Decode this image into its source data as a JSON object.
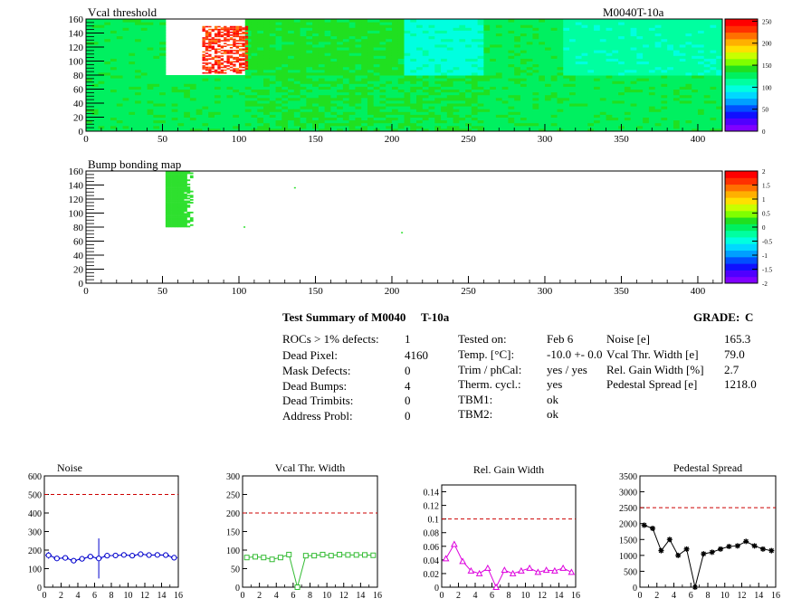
{
  "map_panels": {
    "vcal": {
      "title": "Vcal threshold",
      "label": "M0040T-10a",
      "x_ticks": [
        "0",
        "50",
        "100",
        "150",
        "200",
        "250",
        "300",
        "350",
        "400"
      ],
      "y_ticks": [
        "0",
        "20",
        "40",
        "60",
        "80",
        "100",
        "120",
        "140",
        "160"
      ],
      "z_ticks": [
        "0",
        "50",
        "100",
        "150",
        "200",
        "250"
      ],
      "xlim": [
        0,
        416
      ],
      "ylim": [
        0,
        160
      ],
      "zlim": [
        0,
        255
      ]
    },
    "bump": {
      "title": "Bump bonding map",
      "x_ticks": [
        "0",
        "50",
        "100",
        "150",
        "200",
        "250",
        "300",
        "350",
        "400"
      ],
      "y_ticks": [
        "0",
        "20",
        "40",
        "60",
        "80",
        "100",
        "120",
        "140",
        "160"
      ],
      "z_ticks": [
        "-2",
        "-1.5",
        "-1",
        "-0.5",
        "0",
        "0.5",
        "1",
        "1.5",
        "2"
      ],
      "xlim": [
        0,
        416
      ],
      "ylim": [
        0,
        160
      ],
      "zlim": [
        -2,
        2
      ]
    }
  },
  "summary": {
    "title": "Test Summary of M0040",
    "title_id": "T-10a",
    "grade_label": "GRADE:",
    "grade_value": "C",
    "col1": [
      {
        "label": "ROCs > 1% defects:",
        "value": "1"
      },
      {
        "label": "Dead Pixel:",
        "value": "4160"
      },
      {
        "label": "Mask Defects:",
        "value": "0"
      },
      {
        "label": "Dead Bumps:",
        "value": "4"
      },
      {
        "label": "Dead Trimbits:",
        "value": "0"
      },
      {
        "label": "Address Probl:",
        "value": "0"
      }
    ],
    "col2": [
      {
        "label": "Tested on:",
        "value": "Feb 6"
      },
      {
        "label": "Temp. [°C]:",
        "value": "-10.0 +- 0.0"
      },
      {
        "label": "Trim / phCal:",
        "value": "yes / yes"
      },
      {
        "label": "Therm. cycl.:",
        "value": "yes"
      },
      {
        "label": "TBM1:",
        "value": "ok"
      },
      {
        "label": "TBM2:",
        "value": "ok"
      }
    ],
    "col3": [
      {
        "label": "Noise [e]",
        "value": "165.3"
      },
      {
        "label": "Vcal Thr. Width [e]",
        "value": "79.0"
      },
      {
        "label": "Rel. Gain Width [%]",
        "value": "2.7"
      },
      {
        "label": "Pedestal Spread [e]",
        "value": "1218.0"
      }
    ]
  },
  "chart_data": [
    {
      "type": "heatmap",
      "title": "Vcal threshold",
      "xlim": [
        0,
        416
      ],
      "ylim": [
        0,
        160
      ],
      "zlim": [
        0,
        255
      ],
      "rocs_bottom_mean": [
        130,
        130,
        135,
        135,
        135,
        130,
        130,
        130
      ],
      "rocs_top_mean": [
        130,
        null,
        140,
        140,
        100,
        130,
        110,
        110
      ],
      "hot_region": {
        "x": [
          76,
          105
        ],
        "y": [
          82,
          150
        ],
        "value": 250
      },
      "empty_roc": {
        "x": [
          52,
          104
        ],
        "y": [
          80,
          160
        ]
      }
    },
    {
      "type": "heatmap",
      "title": "Bump bonding map",
      "xlim": [
        0,
        416
      ],
      "ylim": [
        0,
        160
      ],
      "zlim": [
        -2,
        2
      ],
      "filled_region": {
        "x": [
          52,
          70
        ],
        "y": [
          80,
          160
        ],
        "value": 0
      }
    },
    {
      "type": "line",
      "title": "Noise",
      "x": [
        0,
        1,
        2,
        3,
        4,
        5,
        6,
        7,
        8,
        9,
        10,
        11,
        12,
        13,
        14,
        15
      ],
      "values": [
        172,
        155,
        158,
        143,
        153,
        165,
        155,
        170,
        171,
        174,
        170,
        178,
        173,
        174,
        173,
        159
      ],
      "errors": [
        18,
        14,
        14,
        14,
        14,
        14,
        108,
        14,
        14,
        14,
        14,
        14,
        14,
        14,
        14,
        14
      ],
      "xlim": [
        0,
        16
      ],
      "ylim": [
        0,
        600
      ],
      "threshold": 500,
      "x_ticks": [
        "0",
        "2",
        "4",
        "6",
        "8",
        "10",
        "12",
        "14",
        "16"
      ],
      "y_ticks": [
        "0",
        "100",
        "200",
        "300",
        "400",
        "500",
        "600"
      ],
      "color": "#0000cc",
      "marker": "circle"
    },
    {
      "type": "line",
      "title": "Vcal Thr. Width",
      "x": [
        0,
        1,
        2,
        3,
        4,
        5,
        6,
        7,
        8,
        9,
        10,
        11,
        12,
        13,
        14,
        15
      ],
      "values": [
        80,
        82,
        80,
        75,
        80,
        88,
        0,
        85,
        85,
        88,
        85,
        88,
        87,
        87,
        87,
        86
      ],
      "xlim": [
        0,
        16
      ],
      "ylim": [
        0,
        300
      ],
      "threshold": 200,
      "x_ticks": [
        "0",
        "2",
        "4",
        "6",
        "8",
        "10",
        "12",
        "14",
        "16"
      ],
      "y_ticks": [
        "0",
        "50",
        "100",
        "150",
        "200",
        "250",
        "300"
      ],
      "color": "#33bb33",
      "marker": "square"
    },
    {
      "type": "line",
      "title": "Rel. Gain Width",
      "x": [
        0,
        1,
        2,
        3,
        4,
        5,
        6,
        7,
        8,
        9,
        10,
        11,
        12,
        13,
        14,
        15
      ],
      "values": [
        0.042,
        0.063,
        0.038,
        0.024,
        0.02,
        0.028,
        0.0,
        0.025,
        0.02,
        0.024,
        0.028,
        0.022,
        0.025,
        0.024,
        0.028,
        0.022
      ],
      "xlim": [
        0,
        16
      ],
      "ylim": [
        0,
        0.15
      ],
      "threshold": 0.1,
      "x_ticks": [
        "0",
        "2",
        "4",
        "6",
        "8",
        "10",
        "12",
        "14",
        "16"
      ],
      "y_ticks": [
        "0",
        "0.02",
        "0.04",
        "0.06",
        "0.08",
        "0.1",
        "0.12",
        "0.14"
      ],
      "color": "#dd00dd",
      "marker": "triangle"
    },
    {
      "type": "line",
      "title": "Pedestal Spread",
      "x": [
        0,
        1,
        2,
        3,
        4,
        5,
        6,
        7,
        8,
        9,
        10,
        11,
        12,
        13,
        14,
        15
      ],
      "values": [
        1950,
        1850,
        1150,
        1500,
        1000,
        1200,
        0,
        1050,
        1100,
        1200,
        1280,
        1300,
        1440,
        1300,
        1200,
        1150
      ],
      "xlim": [
        0,
        16
      ],
      "ylim": [
        0,
        3500
      ],
      "threshold": 2500,
      "x_ticks": [
        "0",
        "2",
        "4",
        "6",
        "8",
        "10",
        "12",
        "14",
        "16"
      ],
      "y_ticks": [
        "0",
        "500",
        "1000",
        "1500",
        "2000",
        "2500",
        "3000",
        "3500"
      ],
      "color": "#000000",
      "marker": "star"
    }
  ]
}
